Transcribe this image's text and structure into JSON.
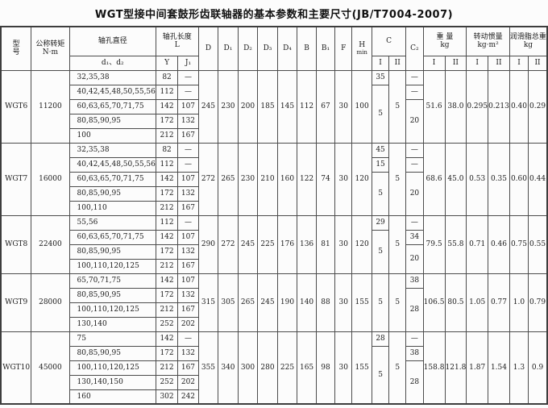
{
  "title": "WGT型接中间套鼓形齿联轴器的基本参数和主要尺寸(JB/T7004-2007)",
  "header": {
    "model_l1": "型",
    "model_l2": "号",
    "torque_l1": "公称转矩",
    "torque_l2": "N·m",
    "bore_dia": "轴孔直径",
    "bore_dia_sub": "d₁、d₂",
    "bore_len_l1": "轴孔长度",
    "bore_len_l2": "L",
    "col_Y": "Y",
    "col_J1": "J₁",
    "dims": [
      "D",
      "D₁",
      "D₂",
      "D₃",
      "D₄",
      "B",
      "B₁",
      "F"
    ],
    "h_l1": "H",
    "h_l2": "min",
    "c": "C",
    "c2": "C₂",
    "weight_l1": "重  量",
    "weight_l2": "kg",
    "inertia_l1": "转动惯量",
    "inertia_l2": "kg·m²",
    "grease_l1": "润滑脂总重",
    "grease_l2": "kg",
    "roman_i": "I",
    "roman_ii": "II"
  },
  "blocks": [
    {
      "model": "WGT6",
      "torque": "11200",
      "rows": [
        {
          "d": "32,35,38",
          "y": "82",
          "j": "—"
        },
        {
          "d": "40,42,45,48,50,55,56",
          "y": "112",
          "j": "—"
        },
        {
          "d": "60,63,65,70,71,75",
          "y": "142",
          "j": "107"
        },
        {
          "d": "80,85,90,95",
          "y": "172",
          "j": "132"
        },
        {
          "d": "100",
          "y": "212",
          "j": "167"
        }
      ],
      "dims": [
        "245",
        "230",
        "200",
        "185",
        "145",
        "112",
        "67",
        "30",
        "100"
      ],
      "cI": [
        {
          "t": "35",
          "s": 1
        },
        {
          "t": "5",
          "s": 4
        }
      ],
      "cII": [
        {
          "t": "5",
          "s": 5
        }
      ],
      "c2": [
        {
          "t": "—",
          "s": 1
        },
        {
          "t": "—",
          "s": 1
        },
        {
          "t": "20",
          "s": 3
        }
      ],
      "right": [
        "51.6",
        "38.0",
        "0.295",
        "0.213",
        "0.40",
        "0.29"
      ]
    },
    {
      "model": "WGT7",
      "torque": "16000",
      "rows": [
        {
          "d": "32,35,38",
          "y": "82",
          "j": "—"
        },
        {
          "d": "40,42,45,48,50,55,56",
          "y": "112",
          "j": "—"
        },
        {
          "d": "60,63,65,70,71,75",
          "y": "142",
          "j": "107"
        },
        {
          "d": "80,85,90,95",
          "y": "172",
          "j": "132"
        },
        {
          "d": "100,110",
          "y": "212",
          "j": "167"
        }
      ],
      "dims": [
        "272",
        "265",
        "230",
        "210",
        "160",
        "122",
        "74",
        "30",
        "120"
      ],
      "cI": [
        {
          "t": "45",
          "s": 1
        },
        {
          "t": "15",
          "s": 1
        },
        {
          "t": "5",
          "s": 3
        }
      ],
      "cII": [
        {
          "t": "5",
          "s": 5
        }
      ],
      "c2": [
        {
          "t": "—",
          "s": 1
        },
        {
          "t": "—",
          "s": 1
        },
        {
          "t": "20",
          "s": 3
        }
      ],
      "right": [
        "68.6",
        "45.0",
        "0.53",
        "0.35",
        "0.60",
        "0.44"
      ]
    },
    {
      "model": "WGT8",
      "torque": "22400",
      "rows": [
        {
          "d": "55,56",
          "y": "112",
          "j": "—"
        },
        {
          "d": "60,63,65,70,71,75",
          "y": "142",
          "j": "107"
        },
        {
          "d": "80,85,90,95",
          "y": "172",
          "j": "132"
        },
        {
          "d": "100,110,120,125",
          "y": "212",
          "j": "167"
        }
      ],
      "dims": [
        "290",
        "272",
        "245",
        "225",
        "176",
        "136",
        "81",
        "30",
        "120"
      ],
      "cI": [
        {
          "t": "29",
          "s": 1
        },
        {
          "t": "5",
          "s": 3
        }
      ],
      "cII": [
        {
          "t": "5",
          "s": 4
        }
      ],
      "c2": [
        {
          "t": "—",
          "s": 1
        },
        {
          "t": "34",
          "s": 1
        },
        {
          "t": "20",
          "s": 2
        }
      ],
      "right": [
        "79.5",
        "55.8",
        "0.71",
        "0.46",
        "0.75",
        "0.55"
      ]
    },
    {
      "model": "WGT9",
      "torque": "28000",
      "rows": [
        {
          "d": "65,70,71,75",
          "y": "142",
          "j": "107"
        },
        {
          "d": "80,85,90,95",
          "y": "172",
          "j": "132"
        },
        {
          "d": "100,110,120,125",
          "y": "212",
          "j": "167"
        },
        {
          "d": "130,140",
          "y": "252",
          "j": "202"
        }
      ],
      "dims": [
        "315",
        "305",
        "265",
        "245",
        "190",
        "140",
        "88",
        "30",
        "155"
      ],
      "cI": [
        {
          "t": "5",
          "s": 4
        }
      ],
      "cII": [
        {
          "t": "5",
          "s": 4
        }
      ],
      "c2": [
        {
          "t": "38",
          "s": 1
        },
        {
          "t": "28",
          "s": 3
        }
      ],
      "right": [
        "106.5",
        "80.5",
        "1.05",
        "0.77",
        "1.0",
        "0.79"
      ]
    },
    {
      "model": "WGT10",
      "torque": "45000",
      "rows": [
        {
          "d": "75",
          "y": "142",
          "j": "—"
        },
        {
          "d": "80,85,90,95",
          "y": "172",
          "j": "132"
        },
        {
          "d": "100,110,120,125",
          "y": "212",
          "j": "167"
        },
        {
          "d": "130,140,150",
          "y": "252",
          "j": "202"
        },
        {
          "d": "160",
          "y": "302",
          "j": "242"
        }
      ],
      "dims": [
        "355",
        "340",
        "300",
        "280",
        "225",
        "165",
        "98",
        "30",
        "155"
      ],
      "cI": [
        {
          "t": "28",
          "s": 1
        },
        {
          "t": "5",
          "s": 4
        }
      ],
      "cII": [
        {
          "t": "5",
          "s": 5
        }
      ],
      "c2": [
        {
          "t": "—",
          "s": 1
        },
        {
          "t": "38",
          "s": 1
        },
        {
          "t": "28",
          "s": 3
        }
      ],
      "right": [
        "158.8",
        "121.8",
        "1.87",
        "1.54",
        "1.3",
        "0.9"
      ]
    }
  ]
}
